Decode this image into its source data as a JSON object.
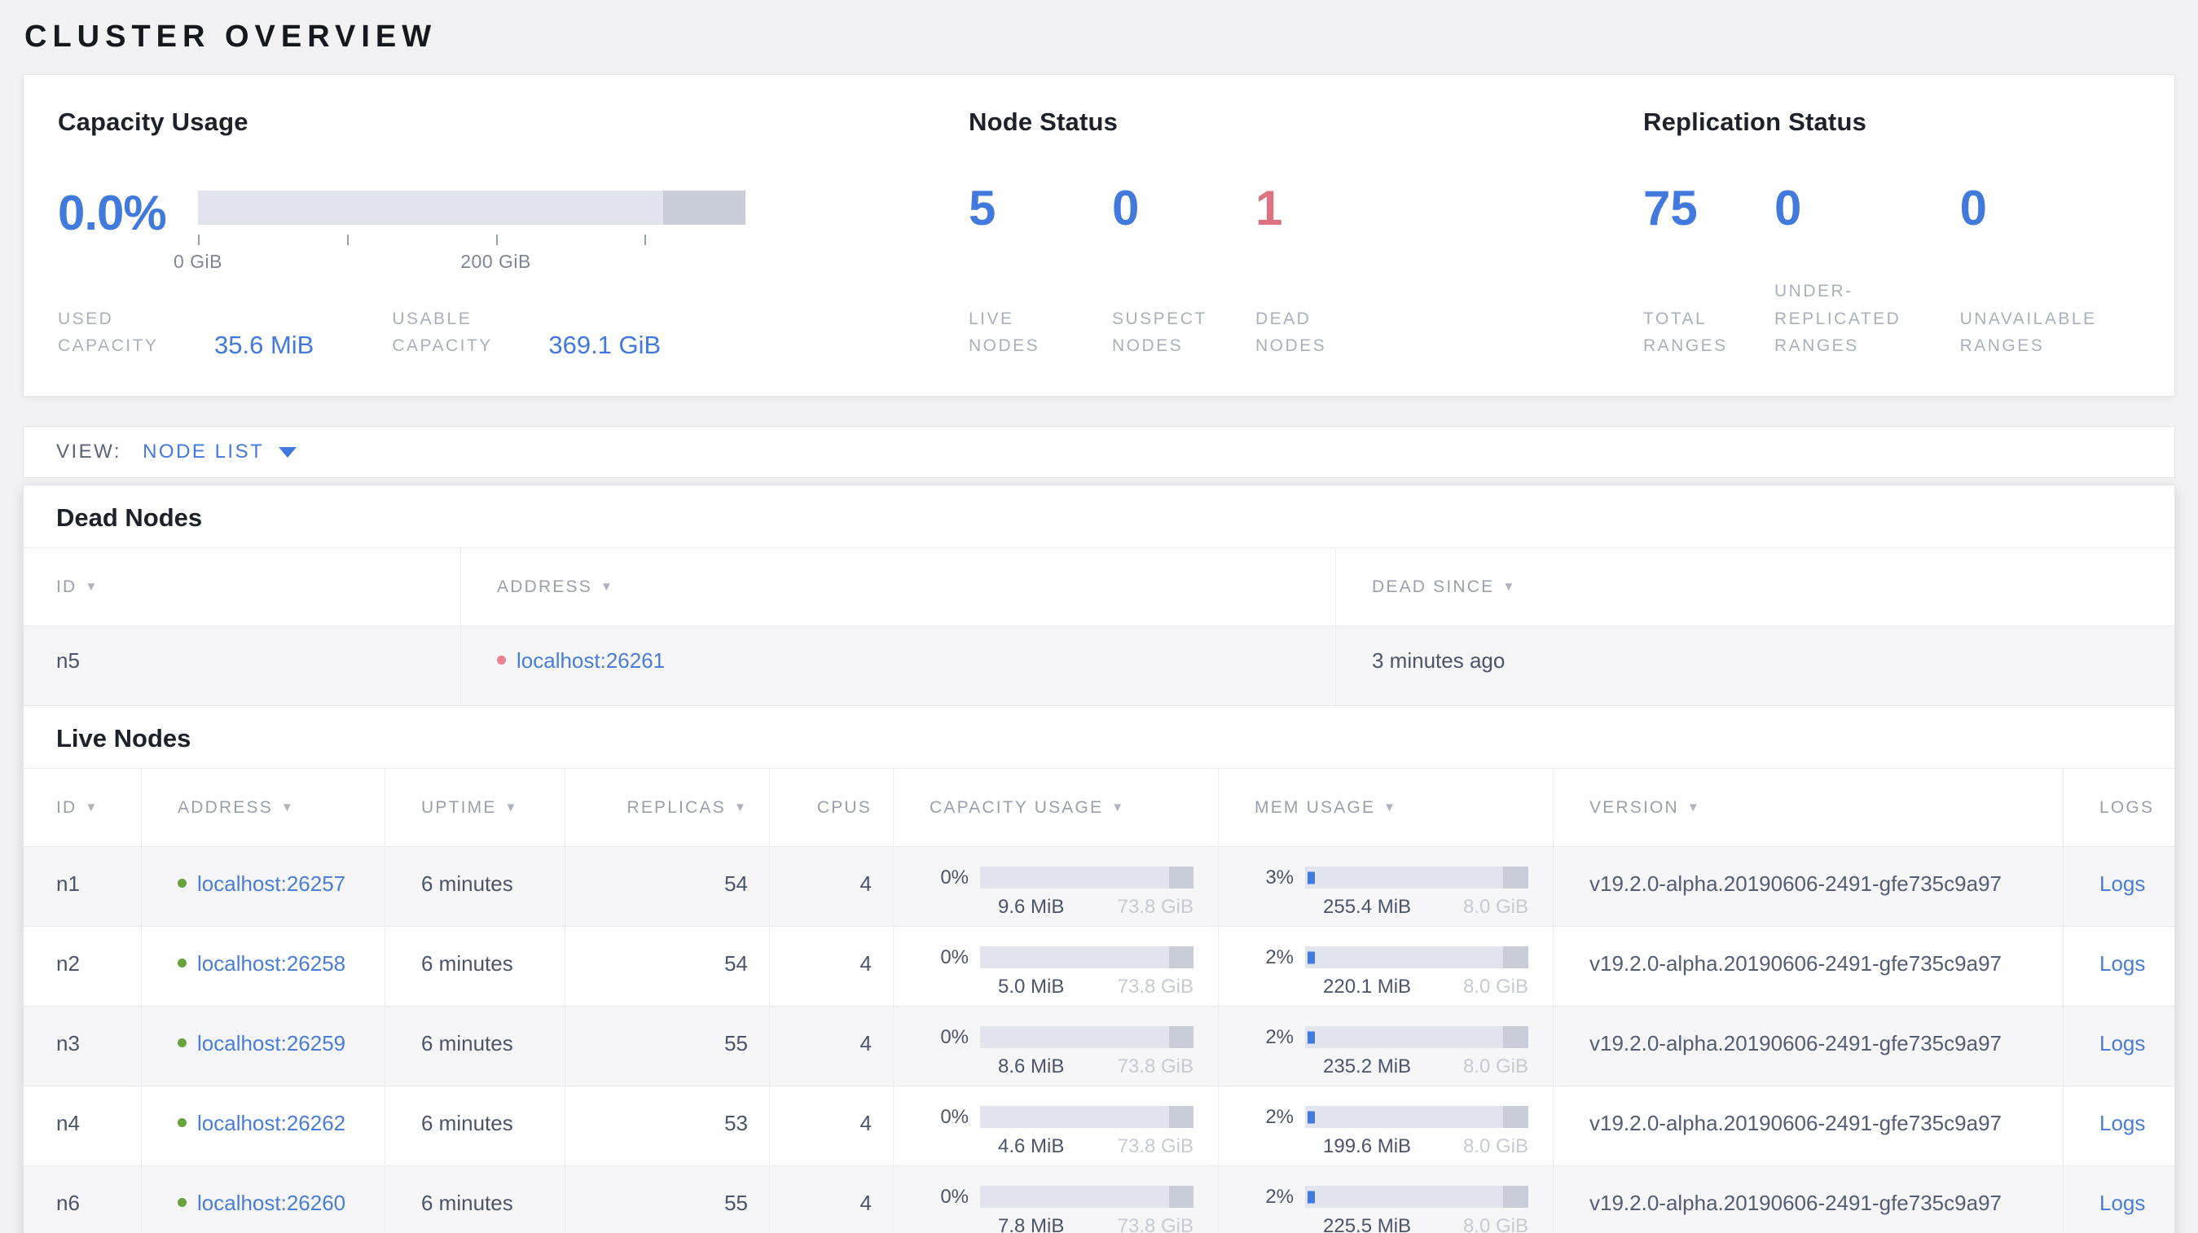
{
  "title": "CLUSTER OVERVIEW",
  "colors": {
    "accent_blue": "#4179dd",
    "link_blue": "#4a7dd6",
    "danger_red": "#dd7280",
    "dead_dot_red": "#e8838f",
    "live_dot_green": "#68a33c"
  },
  "summary": {
    "capacity": {
      "heading": "Capacity Usage",
      "percent": "0.0%",
      "axis_ticks": [
        {
          "pos": 0,
          "label": "0 GiB"
        },
        {
          "pos": 27.2,
          "label": ""
        },
        {
          "pos": 54.4,
          "label": "200 GiB"
        },
        {
          "pos": 81.5,
          "label": ""
        }
      ],
      "stats": [
        {
          "label": "USED CAPACITY",
          "value": "35.6 MiB"
        },
        {
          "label": "USABLE CAPACITY",
          "value": "369.1 GiB"
        }
      ]
    },
    "node_status": {
      "heading": "Node Status",
      "stats": [
        {
          "value": "5",
          "label": "LIVE NODES",
          "tone": "blue"
        },
        {
          "value": "0",
          "label": "SUSPECT NODES",
          "tone": "blue"
        },
        {
          "value": "1",
          "label": "DEAD NODES",
          "tone": "red"
        }
      ]
    },
    "replication": {
      "heading": "Replication Status",
      "stats": [
        {
          "value": "75",
          "label": "TOTAL RANGES",
          "tone": "blue"
        },
        {
          "value": "0",
          "label": "UNDER-REPLICATED RANGES",
          "tone": "blue"
        },
        {
          "value": "0",
          "label": "UNAVAILABLE RANGES",
          "tone": "blue"
        }
      ]
    }
  },
  "view_bar": {
    "label": "VIEW:",
    "selected": "NODE LIST"
  },
  "dead_nodes": {
    "heading": "Dead Nodes",
    "columns": [
      {
        "label": "ID",
        "sortable": true
      },
      {
        "label": "ADDRESS",
        "sortable": true
      },
      {
        "label": "DEAD SINCE",
        "sortable": true
      }
    ],
    "rows": [
      {
        "id": "n5",
        "address": "localhost:26261",
        "dead_since": "3 minutes ago"
      }
    ]
  },
  "live_nodes": {
    "heading": "Live Nodes",
    "columns": [
      {
        "label": "ID",
        "sortable": true
      },
      {
        "label": "ADDRESS",
        "sortable": true
      },
      {
        "label": "UPTIME",
        "sortable": true
      },
      {
        "label": "REPLICAS",
        "sortable": true,
        "align": "right"
      },
      {
        "label": "CPUS",
        "sortable": false,
        "align": "right"
      },
      {
        "label": "CAPACITY USAGE",
        "sortable": true
      },
      {
        "label": "MEM USAGE",
        "sortable": true
      },
      {
        "label": "VERSION",
        "sortable": true
      },
      {
        "label": "LOGS",
        "sortable": false
      }
    ],
    "rows": [
      {
        "id": "n1",
        "address": "localhost:26257",
        "uptime": "6 minutes",
        "replicas": "54",
        "cpus": "4",
        "capacity": {
          "percent": "0%",
          "used": "9.6 MiB",
          "total": "73.8 GiB"
        },
        "memory": {
          "percent": "3%",
          "used": "255.4 MiB",
          "total": "8.0 GiB"
        },
        "version": "v19.2.0-alpha.20190606-2491-gfe735c9a97",
        "logs_label": "Logs"
      },
      {
        "id": "n2",
        "address": "localhost:26258",
        "uptime": "6 minutes",
        "replicas": "54",
        "cpus": "4",
        "capacity": {
          "percent": "0%",
          "used": "5.0 MiB",
          "total": "73.8 GiB"
        },
        "memory": {
          "percent": "2%",
          "used": "220.1 MiB",
          "total": "8.0 GiB"
        },
        "version": "v19.2.0-alpha.20190606-2491-gfe735c9a97",
        "logs_label": "Logs"
      },
      {
        "id": "n3",
        "address": "localhost:26259",
        "uptime": "6 minutes",
        "replicas": "55",
        "cpus": "4",
        "capacity": {
          "percent": "0%",
          "used": "8.6 MiB",
          "total": "73.8 GiB"
        },
        "memory": {
          "percent": "2%",
          "used": "235.2 MiB",
          "total": "8.0 GiB"
        },
        "version": "v19.2.0-alpha.20190606-2491-gfe735c9a97",
        "logs_label": "Logs"
      },
      {
        "id": "n4",
        "address": "localhost:26262",
        "uptime": "6 minutes",
        "replicas": "53",
        "cpus": "4",
        "capacity": {
          "percent": "0%",
          "used": "4.6 MiB",
          "total": "73.8 GiB"
        },
        "memory": {
          "percent": "2%",
          "used": "199.6 MiB",
          "total": "8.0 GiB"
        },
        "version": "v19.2.0-alpha.20190606-2491-gfe735c9a97",
        "logs_label": "Logs"
      },
      {
        "id": "n6",
        "address": "localhost:26260",
        "uptime": "6 minutes",
        "replicas": "55",
        "cpus": "4",
        "capacity": {
          "percent": "0%",
          "used": "7.8 MiB",
          "total": "73.8 GiB"
        },
        "memory": {
          "percent": "2%",
          "used": "225.5 MiB",
          "total": "8.0 GiB"
        },
        "version": "v19.2.0-alpha.20190606-2491-gfe735c9a97",
        "logs_label": "Logs"
      }
    ]
  }
}
